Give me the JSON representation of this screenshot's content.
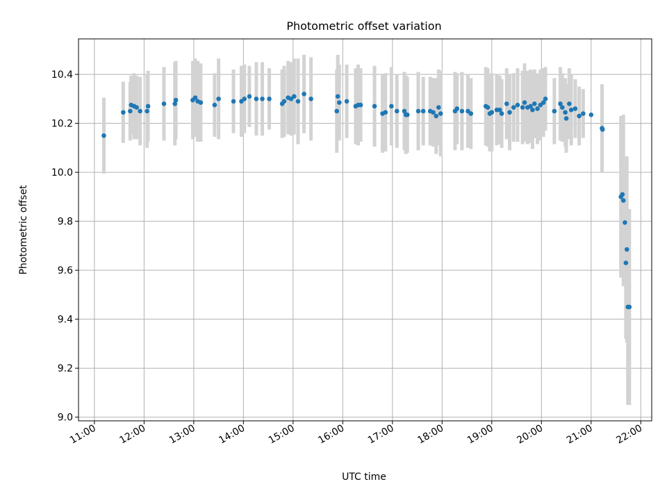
{
  "chart_data": {
    "type": "scatter",
    "title": "Photometric offset variation",
    "xlabel": "UTC time",
    "ylabel": "Photometric offset",
    "x_unit": "hours (UTC)",
    "xlim": [
      10.68,
      22.22
    ],
    "ylim": [
      8.985,
      10.545
    ],
    "x_ticks": [
      11,
      12,
      13,
      14,
      15,
      16,
      17,
      18,
      19,
      20,
      21,
      22
    ],
    "x_tick_labels": [
      "11:00",
      "12:00",
      "13:00",
      "14:00",
      "15:00",
      "16:00",
      "17:00",
      "18:00",
      "19:00",
      "20:00",
      "21:00",
      "22:00"
    ],
    "y_ticks": [
      9.0,
      9.2,
      9.4,
      9.6,
      9.8,
      10.0,
      10.2,
      10.4
    ],
    "y_tick_labels": [
      "9.0",
      "9.2",
      "9.4",
      "9.6",
      "9.8",
      "10.0",
      "10.2",
      "10.4"
    ],
    "grid": true,
    "colors": {
      "point": "#1f77b4",
      "errorbar": "#d3d3d3",
      "grid": "#b0b0b0",
      "axes": "#000000"
    },
    "points": [
      [
        11.19,
        10.15,
        0.155
      ],
      [
        11.58,
        10.245,
        0.125
      ],
      [
        11.72,
        10.25,
        0.12
      ],
      [
        11.74,
        10.275,
        0.12
      ],
      [
        11.8,
        10.27,
        0.135
      ],
      [
        11.85,
        10.265,
        0.13
      ],
      [
        11.92,
        10.25,
        0.14
      ],
      [
        12.06,
        10.25,
        0.15
      ],
      [
        12.08,
        10.27,
        0.145
      ],
      [
        12.4,
        10.28,
        0.15
      ],
      [
        12.62,
        10.28,
        0.17
      ],
      [
        12.64,
        10.295,
        0.16
      ],
      [
        12.98,
        10.295,
        0.16
      ],
      [
        13.03,
        10.305,
        0.16
      ],
      [
        13.08,
        10.29,
        0.165
      ],
      [
        13.14,
        10.285,
        0.16
      ],
      [
        13.42,
        10.275,
        0.13
      ],
      [
        13.5,
        10.3,
        0.165
      ],
      [
        13.8,
        10.29,
        0.13
      ],
      [
        13.96,
        10.29,
        0.145
      ],
      [
        14.02,
        10.3,
        0.14
      ],
      [
        14.12,
        10.31,
        0.125
      ],
      [
        14.26,
        10.3,
        0.15
      ],
      [
        14.38,
        10.3,
        0.15
      ],
      [
        14.52,
        10.3,
        0.125
      ],
      [
        14.78,
        10.28,
        0.14
      ],
      [
        14.82,
        10.29,
        0.145
      ],
      [
        14.9,
        10.305,
        0.15
      ],
      [
        14.96,
        10.3,
        0.15
      ],
      [
        15.02,
        10.31,
        0.155
      ],
      [
        15.1,
        10.29,
        0.175
      ],
      [
        15.22,
        10.32,
        0.16
      ],
      [
        15.36,
        10.3,
        0.17
      ],
      [
        15.88,
        10.25,
        0.17
      ],
      [
        15.9,
        10.31,
        0.17
      ],
      [
        15.93,
        10.285,
        0.155
      ],
      [
        16.08,
        10.29,
        0.15
      ],
      [
        16.26,
        10.27,
        0.155
      ],
      [
        16.31,
        10.275,
        0.165
      ],
      [
        16.36,
        10.275,
        0.15
      ],
      [
        16.64,
        10.27,
        0.165
      ],
      [
        16.8,
        10.24,
        0.16
      ],
      [
        16.86,
        10.245,
        0.16
      ],
      [
        16.98,
        10.27,
        0.16
      ],
      [
        17.09,
        10.25,
        0.15
      ],
      [
        17.24,
        10.25,
        0.16
      ],
      [
        17.27,
        10.235,
        0.16
      ],
      [
        17.3,
        10.235,
        0.155
      ],
      [
        17.52,
        10.25,
        0.16
      ],
      [
        17.62,
        10.25,
        0.14
      ],
      [
        17.76,
        10.25,
        0.14
      ],
      [
        17.82,
        10.245,
        0.14
      ],
      [
        17.88,
        10.23,
        0.155
      ],
      [
        17.93,
        10.265,
        0.155
      ],
      [
        17.97,
        10.24,
        0.175
      ],
      [
        18.26,
        10.25,
        0.16
      ],
      [
        18.3,
        10.26,
        0.145
      ],
      [
        18.4,
        10.25,
        0.16
      ],
      [
        18.52,
        10.25,
        0.15
      ],
      [
        18.58,
        10.24,
        0.145
      ],
      [
        18.88,
        10.27,
        0.16
      ],
      [
        18.92,
        10.265,
        0.16
      ],
      [
        18.96,
        10.24,
        0.155
      ],
      [
        19.0,
        10.245,
        0.16
      ],
      [
        19.1,
        10.255,
        0.145
      ],
      [
        19.16,
        10.255,
        0.14
      ],
      [
        19.2,
        10.24,
        0.14
      ],
      [
        19.3,
        10.28,
        0.145
      ],
      [
        19.36,
        10.245,
        0.155
      ],
      [
        19.44,
        10.265,
        0.14
      ],
      [
        19.52,
        10.275,
        0.15
      ],
      [
        19.62,
        10.265,
        0.15
      ],
      [
        19.66,
        10.285,
        0.16
      ],
      [
        19.72,
        10.265,
        0.15
      ],
      [
        19.78,
        10.27,
        0.15
      ],
      [
        19.82,
        10.255,
        0.16
      ],
      [
        19.86,
        10.28,
        0.14
      ],
      [
        19.92,
        10.26,
        0.145
      ],
      [
        19.98,
        10.275,
        0.145
      ],
      [
        20.04,
        10.285,
        0.14
      ],
      [
        20.08,
        10.3,
        0.13
      ],
      [
        20.26,
        10.25,
        0.135
      ],
      [
        20.38,
        10.28,
        0.15
      ],
      [
        20.42,
        10.265,
        0.14
      ],
      [
        20.48,
        10.245,
        0.14
      ],
      [
        20.5,
        10.22,
        0.14
      ],
      [
        20.56,
        10.28,
        0.145
      ],
      [
        20.6,
        10.255,
        0.145
      ],
      [
        20.68,
        10.26,
        0.12
      ],
      [
        20.76,
        10.23,
        0.12
      ],
      [
        20.84,
        10.24,
        0.1
      ],
      [
        21.0,
        10.235,
        0.0
      ],
      [
        21.22,
        10.18,
        0.18
      ],
      [
        21.23,
        10.175,
        0.005
      ],
      [
        21.6,
        9.9,
        0.33
      ],
      [
        21.63,
        9.91,
        0.2
      ],
      [
        21.65,
        9.885,
        0.35
      ],
      [
        21.68,
        9.795,
        0.24
      ],
      [
        21.7,
        9.63,
        0.31
      ],
      [
        21.72,
        9.685,
        0.38
      ],
      [
        21.74,
        9.45,
        0.4
      ],
      [
        21.77,
        9.45,
        0.4
      ]
    ]
  }
}
